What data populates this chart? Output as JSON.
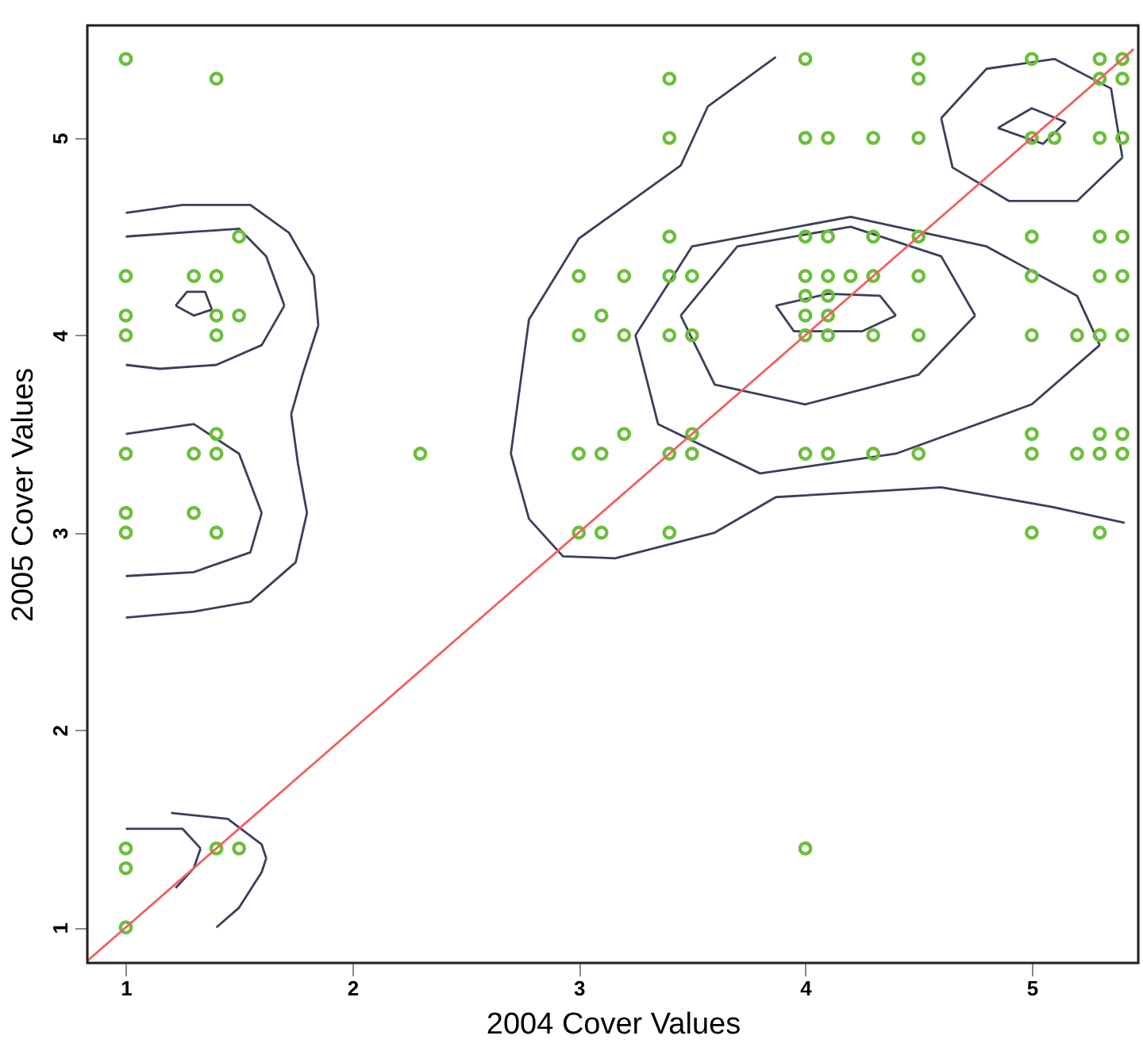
{
  "chart_data": {
    "type": "scatter",
    "xlabel": "2004 Cover Values",
    "ylabel": "2005 Cover Values",
    "xlim": [
      0.83,
      5.47
    ],
    "ylim": [
      0.82,
      5.57
    ],
    "xticks": [
      1,
      2,
      3,
      4,
      5
    ],
    "yticks": [
      1,
      2,
      3,
      4,
      5
    ],
    "grid": false,
    "series": [
      {
        "type": "line",
        "color": "#3b3f5c",
        "x": [
          1.0,
          1.25,
          1.55,
          1.72,
          1.83,
          1.85,
          null,
          1.73,
          1.78,
          1.85,
          null,
          1.73,
          1.76,
          1.8,
          null,
          1.0,
          1.3,
          1.55,
          1.75,
          1.8
        ],
        "values": [
          4.62,
          4.66,
          4.66,
          4.52,
          4.3,
          4.05,
          null,
          3.6,
          3.8,
          4.05,
          null,
          3.6,
          3.35,
          3.1,
          null,
          2.57,
          2.6,
          2.65,
          2.85,
          3.1
        ]
      },
      {
        "type": "line",
        "color": "#3b3f5c",
        "x": [
          1.0,
          1.5,
          1.62,
          1.7,
          null,
          1.0,
          1.15,
          1.4,
          1.6,
          1.7
        ],
        "values": [
          4.5,
          4.54,
          4.4,
          4.15,
          null,
          3.85,
          3.83,
          3.85,
          3.95,
          4.15
        ]
      },
      {
        "type": "line",
        "color": "#3b3f5c",
        "x": [
          1.22,
          1.27,
          1.35,
          1.38,
          null,
          1.22,
          1.3,
          1.38
        ],
        "values": [
          4.15,
          4.22,
          4.22,
          4.13,
          null,
          4.15,
          4.1,
          4.13
        ]
      },
      {
        "type": "line",
        "color": "#3b3f5c",
        "x": [
          1.0,
          1.3,
          1.5,
          1.6,
          null,
          1.0,
          1.3,
          1.55,
          1.6
        ],
        "values": [
          3.5,
          3.55,
          3.4,
          3.1,
          null,
          2.78,
          2.8,
          2.9,
          3.1
        ]
      },
      {
        "type": "line",
        "color": "#3b3f5c",
        "x": [
          1.2,
          1.45,
          1.6,
          1.62,
          null,
          1.4,
          1.5,
          1.6,
          1.62
        ],
        "values": [
          1.58,
          1.55,
          1.42,
          1.35,
          null,
          1.0,
          1.1,
          1.28,
          1.35
        ]
      },
      {
        "type": "line",
        "color": "#3b3f5c",
        "x": [
          1.0,
          1.25,
          1.33,
          null,
          1.22,
          1.3,
          1.33
        ],
        "values": [
          1.5,
          1.5,
          1.4,
          null,
          1.2,
          1.3,
          1.4
        ]
      },
      {
        "type": "line",
        "color": "#3b3f5c",
        "x": [
          2.7,
          2.78,
          3.0,
          3.45,
          3.57,
          3.87,
          null,
          2.7,
          2.78,
          2.93,
          3.16,
          3.6,
          3.87,
          4.6,
          5.09,
          5.41
        ],
        "values": [
          3.4,
          4.08,
          4.49,
          4.86,
          5.16,
          5.41,
          null,
          3.4,
          3.07,
          2.88,
          2.87,
          3.0,
          3.18,
          3.23,
          3.13,
          3.05
        ]
      },
      {
        "type": "line",
        "color": "#3b3f5c",
        "x": [
          3.25,
          3.5,
          4.2,
          4.8,
          5.2,
          5.3,
          null,
          3.25,
          3.35,
          3.8,
          4.4,
          5.0,
          5.3
        ],
        "values": [
          4.0,
          4.45,
          4.6,
          4.45,
          4.2,
          3.95,
          null,
          4.0,
          3.55,
          3.3,
          3.4,
          3.65,
          3.95
        ]
      },
      {
        "type": "line",
        "color": "#3b3f5c",
        "x": [
          3.45,
          3.7,
          4.2,
          4.6,
          4.75,
          null,
          3.45,
          3.6,
          4.0,
          4.5,
          4.75
        ],
        "values": [
          4.1,
          4.45,
          4.55,
          4.4,
          4.1,
          null,
          4.1,
          3.75,
          3.65,
          3.8,
          4.1
        ]
      },
      {
        "type": "line",
        "color": "#3b3f5c",
        "x": [
          3.87,
          4.1,
          4.33,
          4.4,
          null,
          3.87,
          3.95,
          4.25,
          4.4
        ],
        "values": [
          4.15,
          4.21,
          4.2,
          4.1,
          null,
          4.15,
          4.02,
          4.02,
          4.1
        ]
      },
      {
        "type": "line",
        "color": "#3b3f5c",
        "x": [
          4.6,
          4.8,
          5.1,
          5.35,
          5.4,
          null,
          4.6,
          4.65,
          4.9,
          5.2,
          5.4,
          null,
          4.85,
          5.0,
          5.15,
          null,
          4.85,
          5.05,
          5.15
        ],
        "values": [
          5.1,
          5.35,
          5.4,
          5.25,
          4.9,
          null,
          5.1,
          4.85,
          4.68,
          4.68,
          4.9,
          null,
          5.05,
          5.15,
          5.08,
          null,
          5.05,
          4.97,
          5.08
        ]
      },
      {
        "color": "#6bbf3a",
        "marker": "circle",
        "x": [
          1,
          1.4,
          1.5,
          1,
          1.3,
          1.4,
          1,
          1.4,
          1.5,
          1,
          1.4,
          1.4,
          1,
          1.3,
          1.4,
          2.3,
          1,
          1.3,
          1,
          1.4,
          1,
          1,
          1.4,
          1.5,
          1,
          4,
          4,
          4.5,
          5,
          5.3,
          5.4,
          3.4,
          4.5,
          5.3,
          5.4,
          3.4,
          4,
          4.1,
          4.3,
          4.5,
          5,
          5.1,
          5.3,
          5.4,
          3.4,
          4,
          4.1,
          4.3,
          4.5,
          5,
          5.3,
          5.4,
          3,
          3.2,
          3.4,
          3.5,
          4,
          4.1,
          4.2,
          4.3,
          4.5,
          5,
          5.3,
          5.4,
          4,
          4.1,
          3.1,
          4,
          4.1,
          3,
          3.2,
          3.4,
          3.5,
          4,
          4.1,
          4.3,
          4.5,
          5,
          5.2,
          5.3,
          5.4,
          3.2,
          3.5,
          5,
          5.3,
          5.4,
          3,
          3.1,
          3.4,
          3.5,
          4,
          4.1,
          4.3,
          4.5,
          5,
          5.2,
          5.3,
          5.4,
          3,
          3.1,
          3.4,
          5,
          5.3
        ],
        "values": [
          5.4,
          5.3,
          4.5,
          4.3,
          4.3,
          4.3,
          4.1,
          4.1,
          4.1,
          4,
          4,
          3.5,
          3.4,
          3.4,
          3.4,
          3.4,
          3.1,
          3.1,
          3,
          3,
          1.4,
          1.3,
          1.4,
          1.4,
          1,
          1.4,
          5.4,
          5.4,
          5.4,
          5.4,
          5.4,
          5.3,
          5.3,
          5.3,
          5.3,
          5,
          5,
          5,
          5,
          5,
          5,
          5,
          5,
          5,
          4.5,
          4.5,
          4.5,
          4.5,
          4.5,
          4.5,
          4.5,
          4.5,
          4.3,
          4.3,
          4.3,
          4.3,
          4.3,
          4.3,
          4.3,
          4.3,
          4.3,
          4.3,
          4.3,
          4.3,
          4.2,
          4.2,
          4.1,
          4.1,
          4.1,
          4,
          4,
          4,
          4,
          4,
          4,
          4,
          4,
          4,
          4,
          4,
          4,
          3.5,
          3.5,
          3.5,
          3.5,
          3.5,
          3.4,
          3.4,
          3.4,
          3.4,
          3.4,
          3.4,
          3.4,
          3.4,
          3.4,
          3.4,
          3.4,
          3.4,
          3,
          3,
          3,
          3,
          3
        ]
      },
      {
        "type": "line",
        "color": "#f06060",
        "x": [
          0.83,
          5.45
        ],
        "values": [
          0.83,
          5.45
        ]
      }
    ]
  }
}
